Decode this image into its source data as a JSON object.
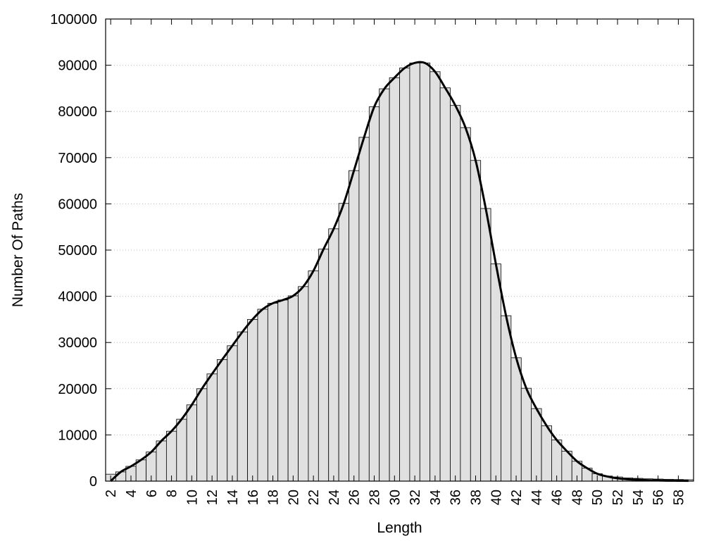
{
  "chart_data": {
    "type": "bar",
    "title": "",
    "xlabel": "Length",
    "ylabel": "Number Of Paths",
    "ylim": [
      0,
      100000
    ],
    "yticks": [
      0,
      10000,
      20000,
      30000,
      40000,
      50000,
      60000,
      70000,
      80000,
      90000,
      100000
    ],
    "xlim": [
      1.5,
      59.5
    ],
    "xticks": [
      2,
      4,
      6,
      8,
      10,
      12,
      14,
      16,
      18,
      20,
      22,
      24,
      26,
      28,
      30,
      32,
      34,
      36,
      38,
      40,
      42,
      44,
      46,
      48,
      50,
      52,
      54,
      56,
      58
    ],
    "grid": "horizontal dotted",
    "bar_color": "#e0e0e0",
    "line_color": "#000000",
    "x": [
      2,
      3,
      4,
      5,
      6,
      7,
      8,
      9,
      10,
      11,
      12,
      13,
      14,
      15,
      16,
      17,
      18,
      19,
      20,
      21,
      22,
      23,
      24,
      25,
      26,
      27,
      28,
      29,
      30,
      31,
      32,
      33,
      34,
      35,
      36,
      37,
      38,
      39,
      40,
      41,
      42,
      43,
      44,
      45,
      46,
      47,
      48,
      49,
      50,
      51,
      52,
      53,
      54,
      55,
      56,
      57,
      58,
      59
    ],
    "series": [
      {
        "type": "bar",
        "values": [
          1500,
          2000,
          3200,
          4600,
          6300,
          8700,
          10800,
          13400,
          16500,
          20000,
          23200,
          26300,
          29300,
          32300,
          35000,
          37200,
          38500,
          39200,
          40100,
          42100,
          45500,
          50200,
          54600,
          60100,
          67200,
          74400,
          81000,
          84900,
          87300,
          89400,
          90500,
          90500,
          88600,
          85100,
          81300,
          76500,
          69400,
          59000,
          47000,
          35800,
          26700,
          20100,
          15700,
          12000,
          8900,
          6500,
          4300,
          2800,
          1600,
          1100,
          900,
          700,
          600,
          500,
          450,
          400,
          350,
          300
        ]
      },
      {
        "type": "line",
        "values": [
          0,
          2000,
          3200,
          4600,
          6300,
          8700,
          10800,
          13400,
          16500,
          20000,
          23200,
          26300,
          29300,
          32300,
          35000,
          37200,
          38500,
          39200,
          40100,
          42100,
          45500,
          50200,
          54600,
          60100,
          67200,
          74400,
          81000,
          84900,
          87300,
          89400,
          90500,
          90500,
          88600,
          85100,
          81300,
          76500,
          69400,
          59000,
          47000,
          35800,
          26700,
          20100,
          15700,
          12000,
          8900,
          6500,
          4300,
          2800,
          1600,
          1000,
          600,
          400,
          300,
          200,
          150,
          100,
          80,
          50
        ]
      }
    ]
  }
}
